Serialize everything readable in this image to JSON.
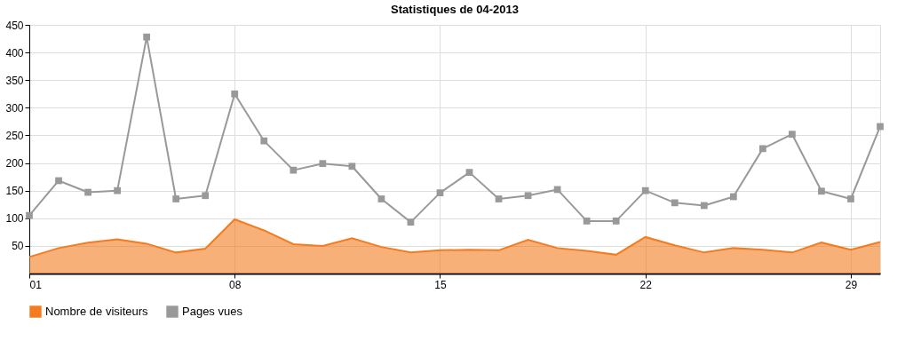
{
  "chart_data": {
    "type": "line",
    "title": "Statistiques de 04-2013",
    "x": [
      1,
      2,
      3,
      4,
      5,
      6,
      7,
      8,
      9,
      10,
      11,
      12,
      13,
      14,
      15,
      16,
      17,
      18,
      19,
      20,
      21,
      22,
      23,
      24,
      25,
      26,
      27,
      28,
      29,
      30
    ],
    "series": [
      {
        "name": "Nombre de visiteurs",
        "type": "area",
        "color": "#f47b20",
        "marker": "none",
        "values": [
          30,
          46,
          56,
          62,
          54,
          38,
          45,
          98,
          78,
          53,
          50,
          64,
          48,
          38,
          42,
          43,
          42,
          61,
          46,
          41,
          34,
          66,
          51,
          38,
          46,
          43,
          38,
          56,
          43,
          57
        ]
      },
      {
        "name": "Pages vues",
        "color": "#999999",
        "marker": "square",
        "values": [
          105,
          168,
          147,
          150,
          428,
          135,
          141,
          325,
          240,
          187,
          199,
          194,
          135,
          93,
          146,
          183,
          135,
          141,
          152,
          95,
          95,
          150,
          128,
          123,
          139,
          226,
          252,
          149,
          135,
          266
        ]
      }
    ],
    "xlim": [
      1,
      30
    ],
    "xticks": [
      {
        "value": 1,
        "label": "01"
      },
      {
        "value": 8,
        "label": "08"
      },
      {
        "value": 15,
        "label": "15"
      },
      {
        "value": 22,
        "label": "22"
      },
      {
        "value": 29,
        "label": "29"
      }
    ],
    "ylim": [
      0,
      450
    ],
    "yticks": [
      50,
      100,
      150,
      200,
      250,
      300,
      350,
      400,
      450
    ],
    "grid": true,
    "legend": "bottom left"
  }
}
